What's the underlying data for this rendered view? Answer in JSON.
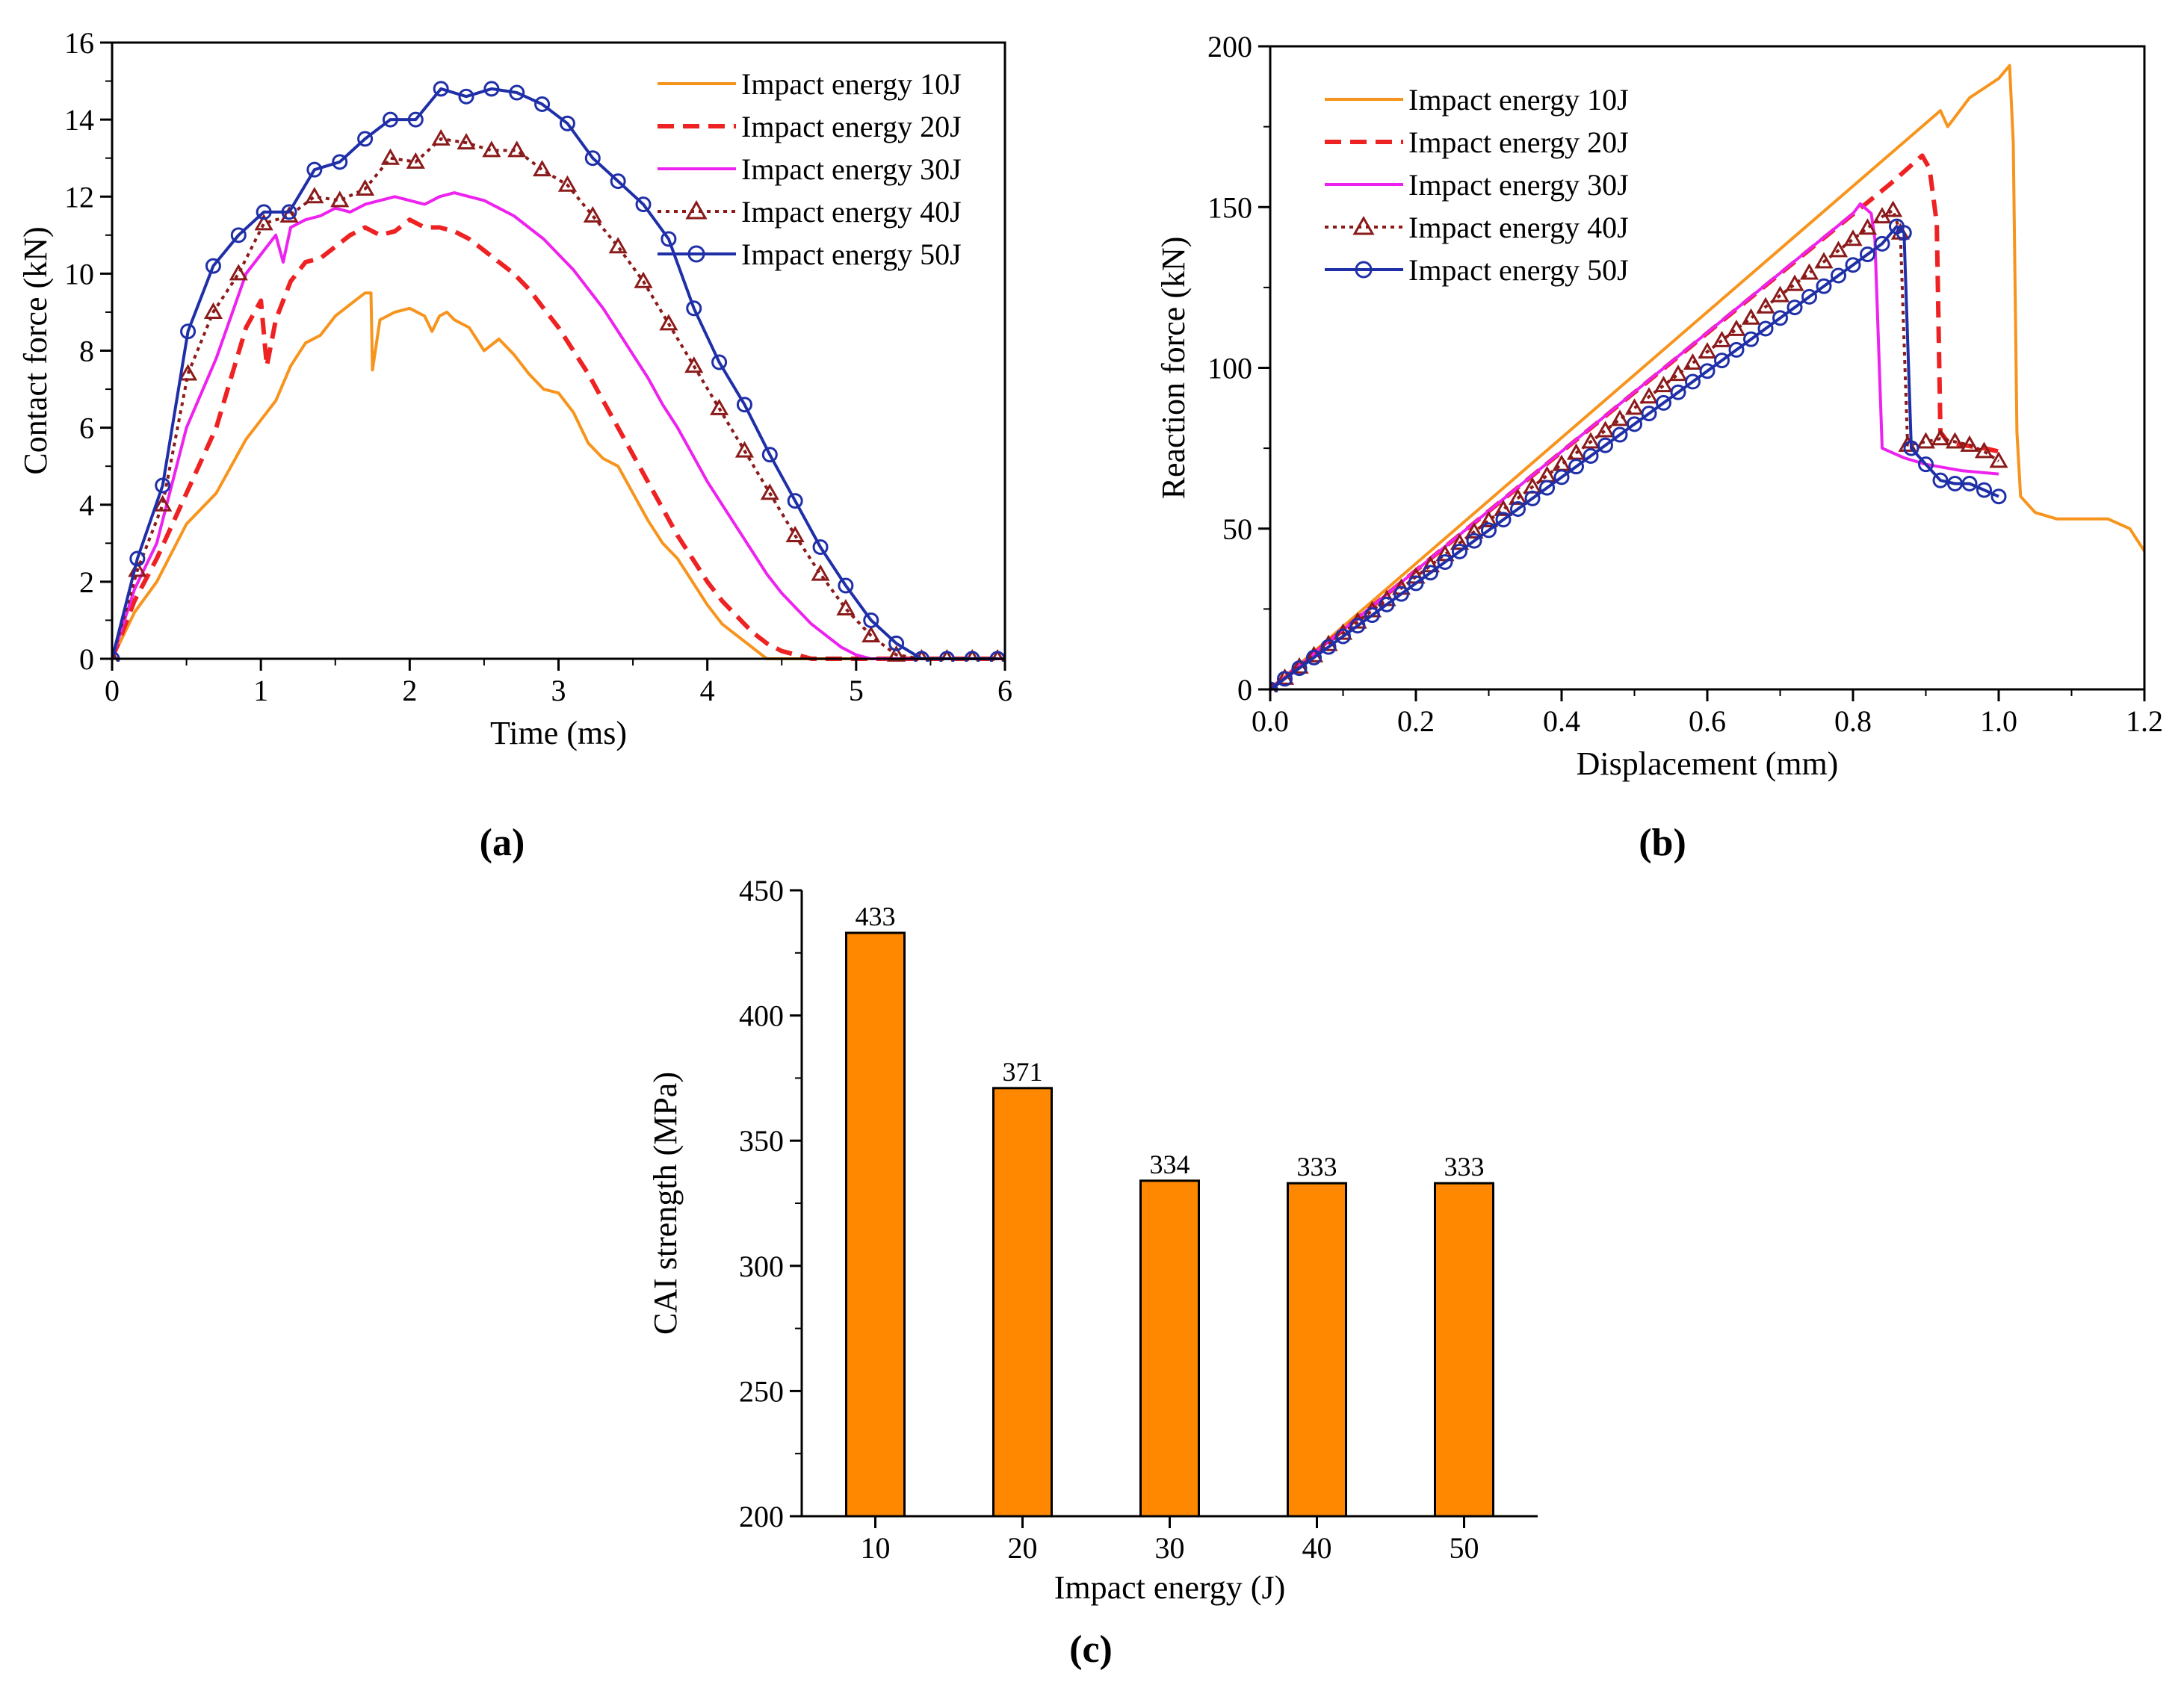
{
  "figure": {
    "panel_labels": [
      "(a)",
      "(b)",
      "(c)"
    ],
    "colors": {
      "e10": "#f7941d",
      "e20": "#ee2222",
      "e30": "#ee22ee",
      "e40": "#8b1a1a",
      "e50": "#1f2fa8",
      "bar_fill": "#ff8800",
      "axis": "#000000"
    }
  },
  "chart_data": [
    {
      "id": "a",
      "type": "line",
      "title": "",
      "xlabel": "Time (ms)",
      "ylabel": "Contact force (kN)",
      "xlim": [
        0,
        6
      ],
      "ylim": [
        0,
        16
      ],
      "xticks": [
        0,
        1,
        2,
        3,
        4,
        5,
        6
      ],
      "yticks": [
        0,
        2,
        4,
        6,
        8,
        10,
        12,
        14,
        16
      ],
      "legend_position": "top-right",
      "series": [
        {
          "name": "Impact energy 10J",
          "style": "solid",
          "marker": "none",
          "color": "#f7941d",
          "x": [
            0,
            0.15,
            0.3,
            0.5,
            0.7,
            0.9,
            1.0,
            1.1,
            1.2,
            1.3,
            1.4,
            1.5,
            1.6,
            1.7,
            1.74,
            1.75,
            1.8,
            1.9,
            2.0,
            2.1,
            2.15,
            2.2,
            2.25,
            2.3,
            2.4,
            2.5,
            2.6,
            2.7,
            2.8,
            2.9,
            3.0,
            3.1,
            3.2,
            3.3,
            3.4,
            3.5,
            3.6,
            3.7,
            3.8,
            3.9,
            4.0,
            4.1,
            4.2,
            4.3,
            4.4,
            4.5,
            5.0,
            5.5,
            6.0
          ],
          "y": [
            0,
            1.2,
            2.0,
            3.5,
            4.3,
            5.7,
            6.2,
            6.7,
            7.6,
            8.2,
            8.4,
            8.9,
            9.2,
            9.5,
            9.5,
            7.5,
            8.8,
            9.0,
            9.1,
            8.9,
            8.5,
            8.9,
            9.0,
            8.8,
            8.6,
            8.0,
            8.3,
            7.9,
            7.4,
            7.0,
            6.9,
            6.4,
            5.6,
            5.2,
            5.0,
            4.3,
            3.6,
            3.0,
            2.6,
            2.0,
            1.4,
            0.9,
            0.6,
            0.3,
            0.0,
            0.0,
            0.0,
            0.0,
            0.0
          ]
        },
        {
          "name": "Impact energy 20J",
          "style": "dashed",
          "marker": "none",
          "color": "#ee2222",
          "x": [
            0,
            0.15,
            0.3,
            0.5,
            0.7,
            0.9,
            1.0,
            1.04,
            1.1,
            1.2,
            1.3,
            1.4,
            1.5,
            1.6,
            1.7,
            1.8,
            1.9,
            2.0,
            2.1,
            2.2,
            2.3,
            2.4,
            2.5,
            2.6,
            2.7,
            2.8,
            2.9,
            3.0,
            3.1,
            3.2,
            3.3,
            3.4,
            3.5,
            3.6,
            3.7,
            3.8,
            3.9,
            4.0,
            4.1,
            4.2,
            4.3,
            4.4,
            4.5,
            4.6,
            4.7,
            4.8,
            5.0,
            5.5,
            6.0
          ],
          "y": [
            0,
            1.5,
            2.6,
            4.3,
            6.0,
            8.6,
            9.3,
            7.6,
            8.8,
            9.8,
            10.3,
            10.4,
            10.7,
            11.0,
            11.2,
            11.0,
            11.1,
            11.4,
            11.2,
            11.2,
            11.1,
            10.9,
            10.6,
            10.3,
            10.0,
            9.6,
            9.1,
            8.6,
            8.0,
            7.4,
            6.7,
            6.0,
            5.3,
            4.6,
            3.9,
            3.2,
            2.6,
            2.0,
            1.5,
            1.1,
            0.7,
            0.4,
            0.2,
            0.1,
            0.0,
            0.0,
            0.0,
            0.0,
            0.0
          ]
        },
        {
          "name": "Impact energy 30J",
          "style": "solid",
          "marker": "none",
          "color": "#ee22ee",
          "x": [
            0,
            0.15,
            0.3,
            0.5,
            0.7,
            0.9,
            1.0,
            1.1,
            1.15,
            1.2,
            1.3,
            1.4,
            1.5,
            1.6,
            1.7,
            1.8,
            1.9,
            2.0,
            2.1,
            2.2,
            2.3,
            2.4,
            2.5,
            2.6,
            2.7,
            2.8,
            2.9,
            3.0,
            3.1,
            3.2,
            3.3,
            3.4,
            3.5,
            3.6,
            3.7,
            3.8,
            3.9,
            4.0,
            4.1,
            4.2,
            4.3,
            4.4,
            4.5,
            4.6,
            4.7,
            4.8,
            4.9,
            5.0,
            5.1,
            5.2,
            5.5,
            6.0
          ],
          "y": [
            0,
            1.8,
            3.0,
            6.0,
            7.8,
            10.0,
            10.5,
            11.0,
            10.3,
            11.2,
            11.4,
            11.5,
            11.7,
            11.6,
            11.8,
            11.9,
            12.0,
            11.9,
            11.8,
            12.0,
            12.1,
            12.0,
            11.9,
            11.7,
            11.5,
            11.2,
            10.9,
            10.5,
            10.1,
            9.6,
            9.1,
            8.5,
            7.9,
            7.3,
            6.6,
            6.0,
            5.3,
            4.6,
            4.0,
            3.4,
            2.8,
            2.2,
            1.7,
            1.3,
            0.9,
            0.6,
            0.3,
            0.1,
            0.0,
            0.0,
            0.0,
            0.0
          ]
        },
        {
          "name": "Impact energy 40J",
          "style": "dotted",
          "marker": "triangle",
          "color": "#8b1a1a",
          "x": [
            0,
            0.17,
            0.34,
            0.51,
            0.68,
            0.85,
            1.02,
            1.19,
            1.36,
            1.53,
            1.7,
            1.87,
            2.04,
            2.21,
            2.38,
            2.55,
            2.72,
            2.89,
            3.06,
            3.23,
            3.4,
            3.57,
            3.74,
            3.91,
            4.08,
            4.25,
            4.42,
            4.59,
            4.76,
            4.93,
            5.1,
            5.27,
            5.44,
            5.61,
            5.78,
            5.95
          ],
          "y": [
            0,
            2.3,
            4.0,
            7.4,
            9.0,
            10.0,
            11.3,
            11.5,
            12.0,
            11.9,
            12.2,
            13.0,
            12.9,
            13.5,
            13.4,
            13.2,
            13.2,
            12.7,
            12.3,
            11.5,
            10.7,
            9.8,
            8.7,
            7.6,
            6.5,
            5.4,
            4.3,
            3.2,
            2.2,
            1.3,
            0.6,
            0.1,
            0.0,
            0.0,
            0.0,
            0.0
          ]
        },
        {
          "name": "Impact energy 50J",
          "style": "solid",
          "marker": "circle",
          "color": "#1f2fa8",
          "x": [
            0,
            0.17,
            0.34,
            0.51,
            0.68,
            0.85,
            1.02,
            1.19,
            1.36,
            1.53,
            1.7,
            1.87,
            2.04,
            2.21,
            2.38,
            2.55,
            2.72,
            2.89,
            3.06,
            3.23,
            3.4,
            3.57,
            3.74,
            3.91,
            4.08,
            4.25,
            4.42,
            4.59,
            4.76,
            4.93,
            5.1,
            5.27,
            5.44,
            5.61,
            5.78,
            5.95
          ],
          "y": [
            0,
            2.6,
            4.5,
            8.5,
            10.2,
            11.0,
            11.6,
            11.6,
            12.7,
            12.9,
            13.5,
            14.0,
            14.0,
            14.8,
            14.6,
            14.8,
            14.7,
            14.4,
            13.9,
            13.0,
            12.4,
            11.8,
            10.9,
            9.1,
            7.7,
            6.6,
            5.3,
            4.1,
            2.9,
            1.9,
            1.0,
            0.4,
            0.0,
            0.0,
            0.0,
            0.0
          ]
        }
      ]
    },
    {
      "id": "b",
      "type": "line",
      "title": "",
      "xlabel": "Displacement (mm)",
      "ylabel": "Reaction force (kN)",
      "xlim": [
        0,
        1.2
      ],
      "ylim": [
        0,
        200
      ],
      "xticks": [
        0.0,
        0.2,
        0.4,
        0.6,
        0.8,
        1.0,
        1.2
      ],
      "yticks": [
        0,
        50,
        100,
        150,
        200
      ],
      "legend_position": "top-left",
      "series": [
        {
          "name": "Impact energy 10J",
          "style": "solid",
          "marker": "none",
          "color": "#f7941d",
          "x": [
            0,
            0.92,
            0.93,
            0.96,
            0.98,
            1.0,
            1.015,
            1.02,
            1.025,
            1.03,
            1.05,
            1.08,
            1.1,
            1.15,
            1.18,
            1.2
          ],
          "y": [
            0,
            180,
            175,
            184,
            187,
            190,
            194,
            170,
            80,
            60,
            55,
            53,
            53,
            53,
            50,
            43
          ]
        },
        {
          "name": "Impact energy 20J",
          "style": "dashed",
          "marker": "none",
          "color": "#ee2222",
          "x": [
            0,
            0.85,
            0.88,
            0.895,
            0.905,
            0.915,
            0.92,
            0.93,
            0.95,
            0.98,
            1.0
          ],
          "y": [
            0,
            157,
            163,
            166,
            162,
            145,
            80,
            77,
            76,
            75,
            74
          ]
        },
        {
          "name": "Impact energy 30J",
          "style": "solid",
          "marker": "none",
          "color": "#ee22ee",
          "x": [
            0,
            0.8,
            0.81,
            0.825,
            0.83,
            0.84,
            0.87,
            0.9,
            0.95,
            1.0
          ],
          "y": [
            0,
            148,
            151,
            148,
            140,
            75,
            72,
            70,
            68,
            67
          ]
        },
        {
          "name": "Impact energy 40J",
          "style": "dotted",
          "marker": "triangle",
          "color": "#8b1a1a",
          "x": [
            0,
            0.02,
            0.04,
            0.06,
            0.08,
            0.1,
            0.12,
            0.14,
            0.16,
            0.18,
            0.2,
            0.22,
            0.24,
            0.26,
            0.28,
            0.3,
            0.32,
            0.34,
            0.36,
            0.38,
            0.4,
            0.42,
            0.44,
            0.46,
            0.48,
            0.5,
            0.52,
            0.54,
            0.56,
            0.58,
            0.6,
            0.62,
            0.64,
            0.66,
            0.68,
            0.7,
            0.72,
            0.74,
            0.76,
            0.78,
            0.8,
            0.82,
            0.84,
            0.855,
            0.865,
            0.875,
            0.9,
            0.92,
            0.94,
            0.96,
            0.98,
            1.0
          ],
          "y": [
            0,
            3.5,
            7,
            10.5,
            14,
            17.5,
            21,
            24.5,
            28,
            31.5,
            35,
            38.5,
            42,
            45.5,
            49,
            52.5,
            56,
            59.5,
            63,
            66.5,
            70,
            73.5,
            77,
            80.5,
            84,
            87.5,
            91,
            94.5,
            98,
            101.5,
            105,
            108.5,
            112,
            115.5,
            119,
            122.5,
            126,
            129.5,
            133,
            136.5,
            140,
            143.5,
            147,
            149,
            142,
            76,
            77,
            78,
            77,
            76,
            74,
            71
          ]
        },
        {
          "name": "Impact energy 50J",
          "style": "solid",
          "marker": "circle",
          "color": "#1f2fa8",
          "x": [
            0,
            0.02,
            0.04,
            0.06,
            0.08,
            0.1,
            0.12,
            0.14,
            0.16,
            0.18,
            0.2,
            0.22,
            0.24,
            0.26,
            0.28,
            0.3,
            0.32,
            0.34,
            0.36,
            0.38,
            0.4,
            0.42,
            0.44,
            0.46,
            0.48,
            0.5,
            0.52,
            0.54,
            0.56,
            0.58,
            0.6,
            0.62,
            0.64,
            0.66,
            0.68,
            0.7,
            0.72,
            0.74,
            0.76,
            0.78,
            0.8,
            0.82,
            0.84,
            0.86,
            0.87,
            0.88,
            0.9,
            0.92,
            0.94,
            0.96,
            0.98,
            1.0
          ],
          "y": [
            0,
            3.3,
            6.6,
            9.9,
            13.2,
            16.5,
            19.8,
            23.1,
            26.4,
            29.7,
            33,
            36.3,
            39.6,
            42.9,
            46.2,
            49.5,
            52.8,
            56.1,
            59.4,
            62.7,
            66,
            69.3,
            72.6,
            75.9,
            79.2,
            82.5,
            85.8,
            89.1,
            92.4,
            95.7,
            99,
            102.3,
            105.6,
            108.9,
            112.2,
            115.5,
            118.8,
            122.1,
            125.4,
            128.7,
            132,
            135.3,
            138.6,
            144,
            142,
            75,
            70,
            65,
            64,
            64,
            62,
            60
          ]
        }
      ]
    },
    {
      "id": "c",
      "type": "bar",
      "title": "",
      "xlabel": "Impact energy (J)",
      "ylabel": "CAI strength (MPa)",
      "ylim": [
        200,
        450
      ],
      "yticks": [
        200,
        250,
        300,
        350,
        400,
        450
      ],
      "categories": [
        "10",
        "20",
        "30",
        "40",
        "50"
      ],
      "values": [
        433,
        371,
        334,
        333,
        333
      ],
      "data_labels": [
        "433",
        "371",
        "334",
        "333",
        "333"
      ]
    }
  ]
}
